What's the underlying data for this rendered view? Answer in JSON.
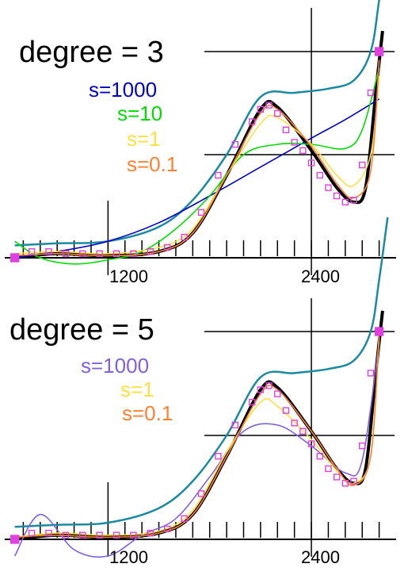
{
  "chart_data": [
    {
      "type": "line",
      "title": "degree = 3",
      "xlabel": "",
      "ylabel": "",
      "x_tick_labels": [
        "1200",
        "2400"
      ],
      "xlim": [
        600,
        2900
      ],
      "ylim": [
        0,
        1
      ],
      "grid": true,
      "legend_position": "top-right",
      "series": [
        {
          "name": "s=1000",
          "color": "#0000cc",
          "x": [
            650,
            900,
            1200,
            1500,
            1800,
            2100,
            2400,
            2600,
            2800
          ],
          "y": [
            0.0,
            0.03,
            0.08,
            0.17,
            0.3,
            0.44,
            0.58,
            0.67,
            0.77
          ]
        },
        {
          "name": "s=10",
          "color": "#00dd00",
          "x": [
            650,
            800,
            1000,
            1200,
            1400,
            1600,
            1800,
            2000,
            2200,
            2400,
            2600,
            2700,
            2800
          ],
          "y": [
            0.08,
            0.0,
            -0.03,
            -0.01,
            0.03,
            0.14,
            0.3,
            0.5,
            0.55,
            0.55,
            0.53,
            0.62,
            0.92
          ]
        },
        {
          "name": "s=1",
          "color": "#ffe040",
          "x": [
            650,
            900,
            1200,
            1500,
            1700,
            1900,
            2100,
            2200,
            2400,
            2550,
            2650,
            2750,
            2800
          ],
          "y": [
            0.02,
            0.03,
            0.02,
            0.05,
            0.14,
            0.4,
            0.65,
            0.68,
            0.55,
            0.4,
            0.35,
            0.5,
            0.88
          ]
        },
        {
          "name": "s=0.1",
          "color": "#ff8030",
          "x": [
            650,
            900,
            1200,
            1500,
            1700,
            1900,
            2100,
            2200,
            2400,
            2550,
            2650,
            2750,
            2800
          ],
          "y": [
            0.01,
            0.02,
            0.01,
            0.03,
            0.12,
            0.4,
            0.7,
            0.72,
            0.54,
            0.36,
            0.29,
            0.42,
            0.96
          ]
        }
      ]
    },
    {
      "type": "line",
      "title": "degree = 5",
      "xlabel": "",
      "ylabel": "",
      "x_tick_labels": [
        "1200",
        "2400"
      ],
      "xlim": [
        600,
        2900
      ],
      "ylim": [
        0,
        1
      ],
      "grid": true,
      "legend_position": "top-right",
      "series": [
        {
          "name": "s=1000",
          "color": "#8060e0",
          "x": [
            650,
            800,
            1000,
            1200,
            1400,
            1600,
            1800,
            2000,
            2200,
            2400,
            2600,
            2700,
            2800
          ],
          "y": [
            -0.08,
            0.12,
            -0.05,
            -0.08,
            0.02,
            0.1,
            0.3,
            0.52,
            0.55,
            0.45,
            0.32,
            0.38,
            0.95
          ]
        },
        {
          "name": "s=1",
          "color": "#ffe040",
          "x": [
            650,
            900,
            1200,
            1500,
            1700,
            1900,
            2100,
            2200,
            2400,
            2550,
            2650,
            2750,
            2800
          ],
          "y": [
            0.01,
            0.03,
            0.02,
            0.04,
            0.14,
            0.42,
            0.66,
            0.64,
            0.48,
            0.33,
            0.27,
            0.4,
            0.97
          ]
        },
        {
          "name": "s=0.1",
          "color": "#ff8030",
          "x": [
            650,
            900,
            1200,
            1500,
            1700,
            1900,
            2100,
            2200,
            2400,
            2550,
            2650,
            2750,
            2800
          ],
          "y": [
            0.01,
            0.02,
            0.01,
            0.03,
            0.12,
            0.4,
            0.7,
            0.72,
            0.52,
            0.34,
            0.26,
            0.4,
            0.99
          ]
        }
      ]
    }
  ],
  "data_points": {
    "color": "#e040e0",
    "x": [
      650,
      750,
      850,
      950,
      1050,
      1150,
      1250,
      1350,
      1450,
      1550,
      1650,
      1750,
      1850,
      1950,
      2050,
      2100,
      2150,
      2200,
      2250,
      2300,
      2350,
      2400,
      2450,
      2500,
      2550,
      2600,
      2650,
      2700,
      2750,
      2800
    ],
    "y": [
      0.0,
      0.03,
      0.03,
      0.02,
      0.02,
      0.02,
      0.02,
      0.02,
      0.03,
      0.05,
      0.1,
      0.22,
      0.4,
      0.55,
      0.66,
      0.72,
      0.74,
      0.7,
      0.62,
      0.56,
      0.52,
      0.46,
      0.4,
      0.34,
      0.3,
      0.27,
      0.28,
      0.45,
      0.8,
      1.0
    ]
  },
  "true_curve": {
    "color": "#000000",
    "x": [
      650,
      900,
      1200,
      1500,
      1700,
      1900,
      2100,
      2200,
      2400,
      2550,
      2650,
      2720,
      2780,
      2820
    ],
    "y": [
      0.0,
      0.02,
      0.01,
      0.03,
      0.12,
      0.4,
      0.72,
      0.73,
      0.52,
      0.34,
      0.27,
      0.34,
      0.8,
      1.1
    ]
  },
  "reference_curve": {
    "color": "#1a8aa0",
    "x": [
      650,
      900,
      1200,
      1500,
      1700,
      1900,
      2100,
      2300,
      2500,
      2650,
      2750,
      2800,
      2850
    ],
    "y": [
      0.06,
      0.07,
      0.08,
      0.15,
      0.28,
      0.5,
      0.78,
      0.8,
      0.82,
      0.86,
      1.0,
      1.25,
      1.55
    ]
  }
}
